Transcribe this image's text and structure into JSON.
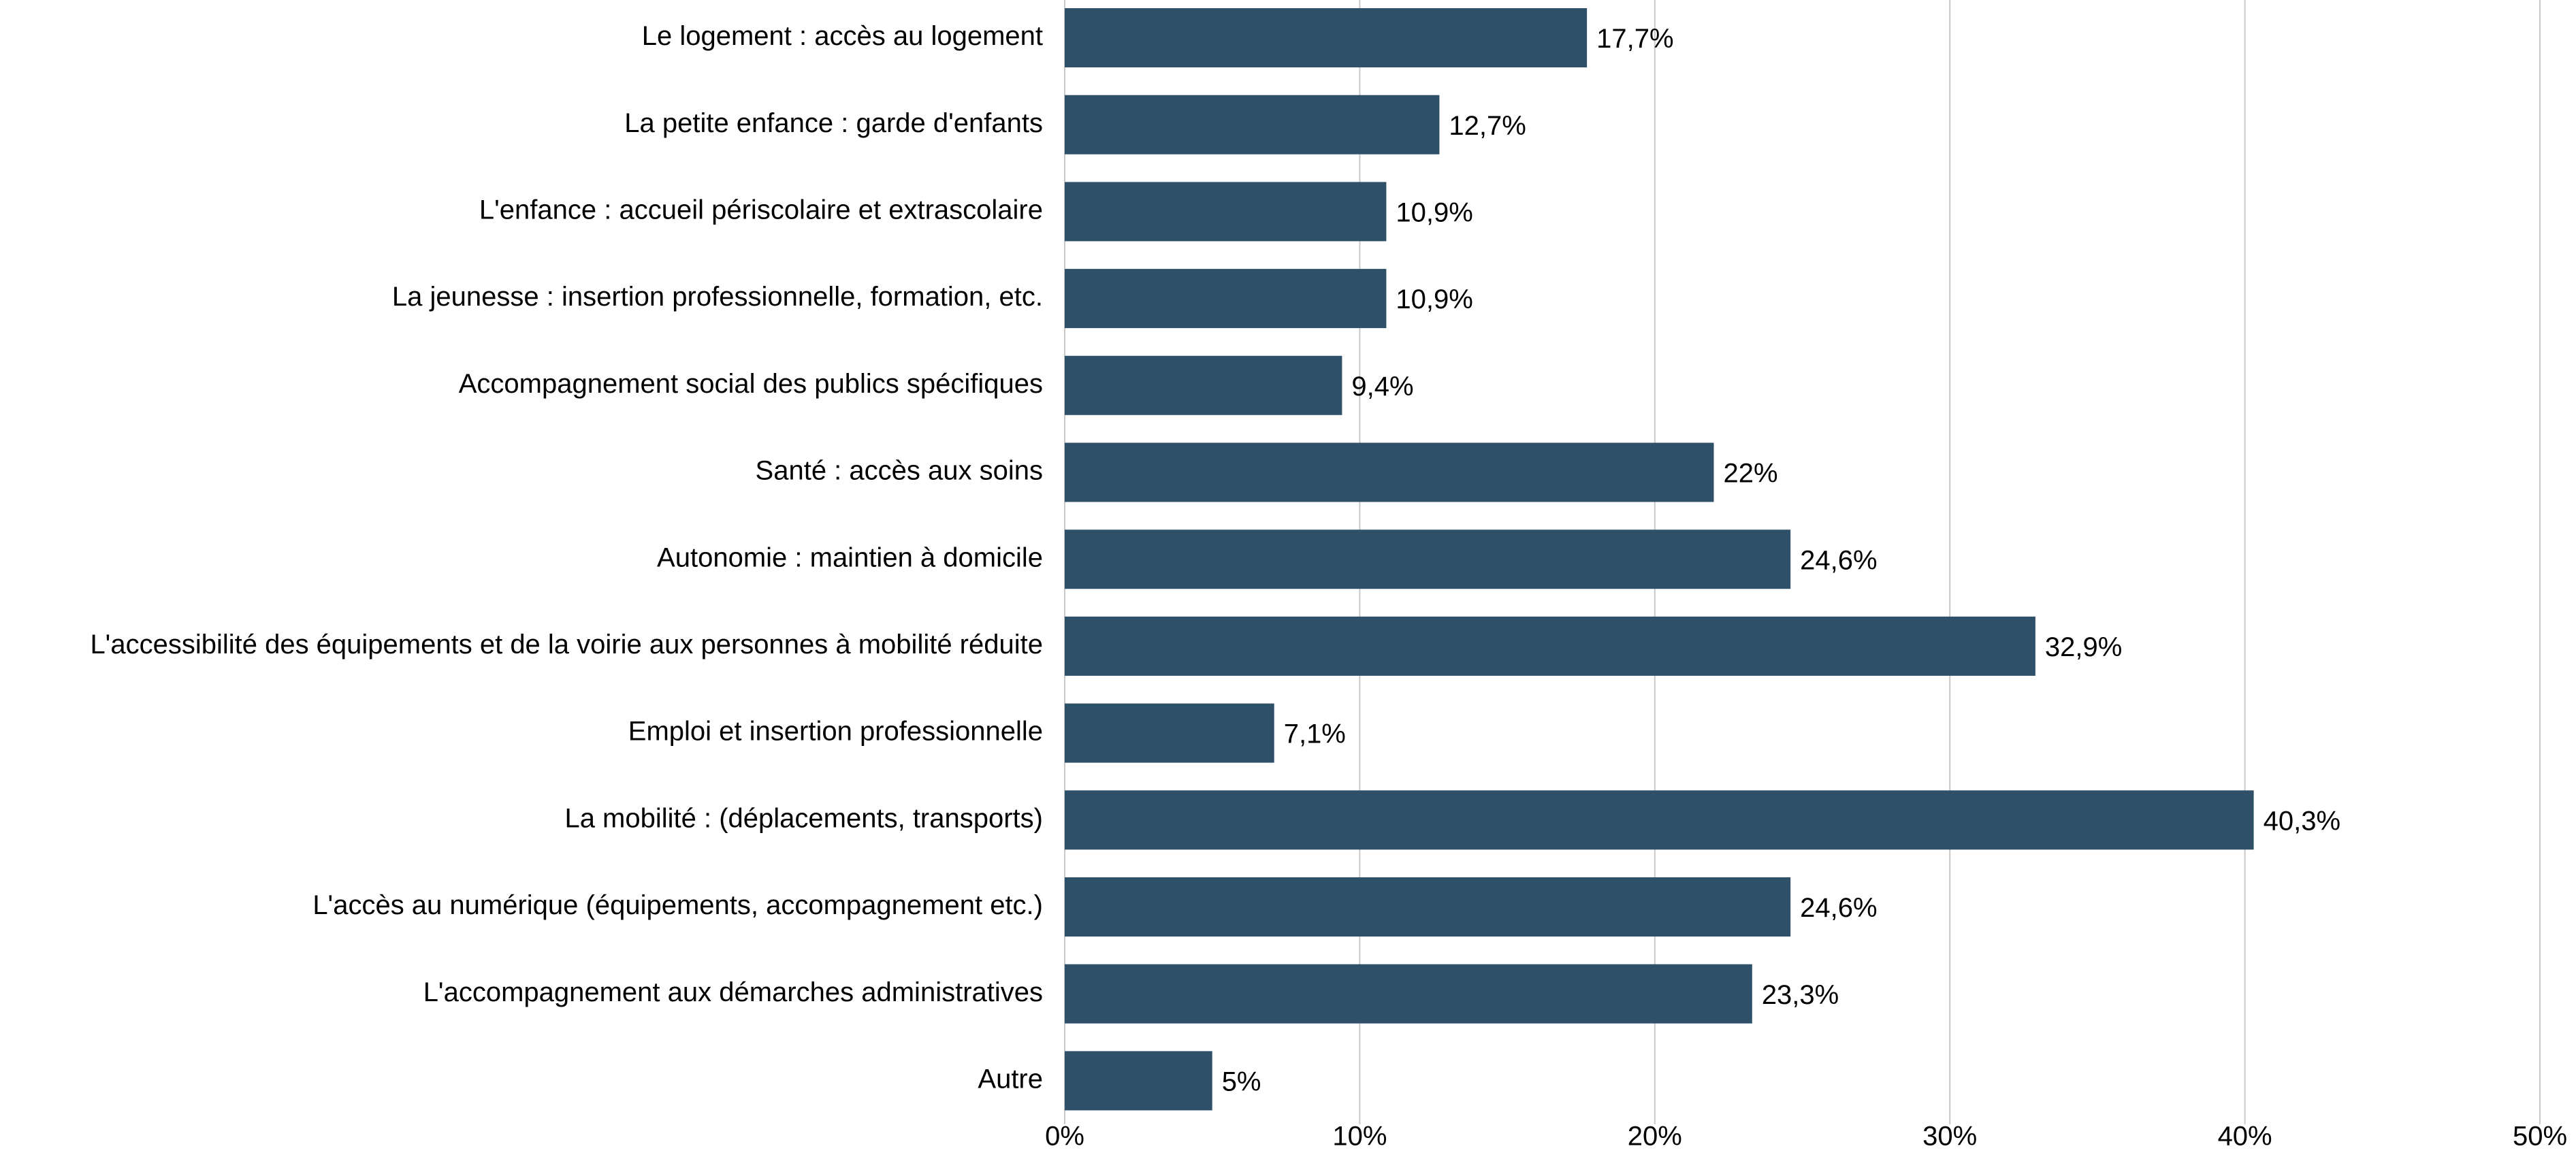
{
  "chart_data": {
    "type": "bar",
    "orientation": "horizontal",
    "categories": [
      "Le logement : accès au logement",
      "La petite enfance : garde d'enfants",
      "L'enfance : accueil périscolaire et extrascolaire",
      "La jeunesse : insertion professionnelle, formation, etc.",
      "Accompagnement social des publics spécifiques",
      "Santé : accès aux soins",
      "Autonomie : maintien à domicile",
      "L'accessibilité des équipements et de la voirie aux personnes à mobilité réduite",
      "Emploi et insertion professionnelle",
      "La mobilité : (déplacements, transports)",
      "L'accès au numérique (équipements, accompagnement etc.)",
      "L'accompagnement aux démarches administratives",
      "Autre"
    ],
    "values": [
      17.7,
      12.7,
      10.9,
      10.9,
      9.4,
      22,
      24.6,
      32.9,
      7.1,
      40.3,
      24.6,
      23.3,
      5
    ],
    "value_labels": [
      "17,7%",
      "12,7%",
      "10,9%",
      "10,9%",
      "9,4%",
      "22%",
      "24,6%",
      "32,9%",
      "7,1%",
      "40,3%",
      "24,6%",
      "23,3%",
      "5%"
    ],
    "color": "#2f5069",
    "xlim": [
      0,
      50
    ],
    "xticks": [
      {
        "value": 0,
        "label": "0%"
      },
      {
        "value": 10,
        "label": "10%"
      },
      {
        "value": 20,
        "label": "20%"
      },
      {
        "value": 30,
        "label": "30%"
      },
      {
        "value": 40,
        "label": "40%"
      },
      {
        "value": 50,
        "label": "50%"
      }
    ],
    "grid": true
  }
}
